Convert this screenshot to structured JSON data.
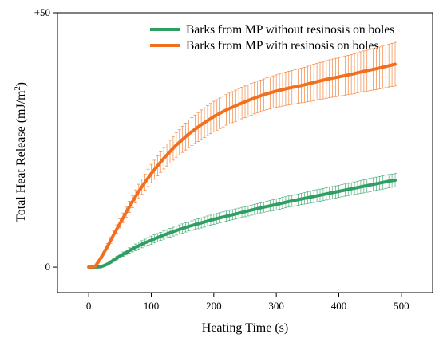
{
  "chart_data": {
    "type": "line",
    "xlabel": "Heating Time (s)",
    "ylabel": "Total Heat Release (mJ/m²)",
    "ylabel_main": "Total Heat Release (mJ/m",
    "ylabel_sup": "2",
    "ylabel_tail": ")",
    "xlim": [
      -50,
      550
    ],
    "ylim": [
      -5,
      50
    ],
    "x_ticks": [
      0,
      100,
      200,
      300,
      400,
      500
    ],
    "x_tick_labels": [
      "0",
      "100",
      "200",
      "300",
      "400",
      "500"
    ],
    "y_ticks": [
      0,
      50
    ],
    "y_tick_labels": [
      "0",
      "+50"
    ],
    "legend_position": "top-right",
    "grid": false,
    "series": [
      {
        "name": "Barks from MP without resinosis on boles",
        "color": "#2e9e63",
        "x": [
          0,
          10,
          20,
          30,
          40,
          50,
          60,
          70,
          80,
          90,
          100,
          120,
          140,
          160,
          180,
          200,
          220,
          240,
          260,
          280,
          300,
          320,
          340,
          360,
          380,
          400,
          420,
          440,
          460,
          480,
          490
        ],
        "y": [
          0,
          0,
          0.1,
          0.6,
          1.4,
          2.2,
          2.9,
          3.6,
          4.2,
          4.8,
          5.3,
          6.3,
          7.2,
          8.0,
          8.7,
          9.4,
          10.0,
          10.6,
          11.2,
          11.8,
          12.3,
          12.9,
          13.4,
          13.9,
          14.4,
          14.9,
          15.4,
          15.9,
          16.4,
          16.9,
          17.1
        ],
        "err": [
          0,
          0,
          0.1,
          0.2,
          0.3,
          0.4,
          0.5,
          0.6,
          0.7,
          0.7,
          0.8,
          0.8,
          0.9,
          0.9,
          1.0,
          1.0,
          1.0,
          1.0,
          1.0,
          1.0,
          1.1,
          1.1,
          1.1,
          1.2,
          1.2,
          1.2,
          1.2,
          1.3,
          1.3,
          1.3,
          1.3
        ]
      },
      {
        "name": "Barks from MP with resinosis on boles",
        "color": "#f07020",
        "x": [
          0,
          10,
          20,
          30,
          40,
          50,
          60,
          70,
          80,
          90,
          100,
          120,
          140,
          160,
          180,
          200,
          220,
          240,
          260,
          280,
          300,
          320,
          340,
          360,
          380,
          400,
          420,
          440,
          460,
          480,
          490
        ],
        "y": [
          0,
          0.1,
          1.9,
          4.1,
          6.4,
          8.6,
          10.8,
          12.9,
          14.9,
          16.7,
          18.4,
          21.4,
          24.0,
          26.2,
          28.0,
          29.6,
          30.9,
          32.0,
          33.0,
          33.9,
          34.6,
          35.2,
          35.7,
          36.3,
          36.9,
          37.4,
          37.9,
          38.5,
          39.0,
          39.6,
          39.9
        ],
        "err": [
          0,
          0.1,
          0.3,
          0.5,
          0.7,
          0.9,
          1.0,
          1.2,
          1.4,
          1.6,
          1.8,
          2.1,
          2.4,
          2.7,
          2.9,
          3.0,
          3.0,
          3.1,
          3.1,
          3.1,
          3.2,
          3.3,
          3.4,
          3.6,
          3.7,
          3.8,
          3.9,
          4.0,
          4.1,
          4.2,
          4.3
        ]
      }
    ]
  }
}
